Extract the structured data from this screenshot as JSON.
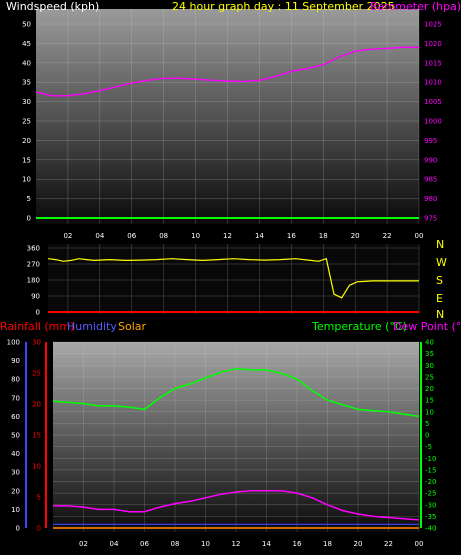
{
  "header": {
    "windspeed_label": "Windspeed (kph)",
    "graph_title": "24 hour graph day : 11 September 2025",
    "barometer_label": "Barometer (hpa)"
  },
  "legend": {
    "rainfall": "Rainfall (mm)",
    "humidity": "Humidity",
    "solar": "Solar",
    "temperature": "Temperature (°C)",
    "dewpoint": "Dew Point (°C)"
  },
  "compass": [
    "N",
    "W",
    "S",
    "E",
    "N"
  ],
  "colors": {
    "windspeed": "#00ff00",
    "barometer": "#ff00ff",
    "direction": "#ffff00",
    "rainfall": "#ff0000",
    "humidity": "#ff00ff",
    "temperature": "#00ff00",
    "dewpoint": "#ff00ff",
    "solar": "#ffa500"
  },
  "chart_data": [
    {
      "type": "line",
      "x_ticks": [
        "02",
        "04",
        "06",
        "08",
        "10",
        "12",
        "14",
        "16",
        "18",
        "20",
        "22",
        "00"
      ],
      "left_axis": {
        "label": "Windspeed (kph)",
        "range": [
          0,
          50
        ],
        "ticks": [
          0,
          5,
          10,
          15,
          20,
          25,
          30,
          35,
          40,
          45,
          50
        ]
      },
      "right_axis": {
        "label": "Barometer (hpa)",
        "range": [
          975,
          1025
        ],
        "ticks": [
          975,
          980,
          985,
          990,
          995,
          1000,
          1005,
          1010,
          1015,
          1020,
          1025
        ]
      },
      "series": [
        {
          "name": "Barometer (hpa)",
          "axis": "right",
          "x": [
            0,
            1,
            2,
            3,
            4,
            5,
            6,
            7,
            8,
            9,
            10,
            11,
            12,
            13,
            14,
            15,
            16,
            17,
            18,
            19,
            20,
            21,
            22,
            23,
            24
          ],
          "values": [
            1007.5,
            1006.5,
            1006.5,
            1007,
            1007.8,
            1008.8,
            1009.8,
            1010.5,
            1011,
            1011,
            1010.8,
            1010.5,
            1010.3,
            1010.2,
            1010.5,
            1011.5,
            1012.8,
            1013.5,
            1014.5,
            1016.5,
            1018,
            1018.5,
            1018.7,
            1019,
            1019
          ]
        },
        {
          "name": "Windspeed (kph)",
          "axis": "left",
          "x": [
            0,
            24
          ],
          "values": [
            0,
            0
          ]
        }
      ]
    },
    {
      "type": "line",
      "y_range": [
        0,
        360
      ],
      "y_ticks": [
        0,
        90,
        180,
        270,
        360
      ],
      "x_ticks": [
        "02",
        "04",
        "06",
        "08",
        "10",
        "12",
        "14",
        "16",
        "18",
        "20",
        "22",
        "00"
      ],
      "series": [
        {
          "name": "Wind direction",
          "x": [
            0,
            0.5,
            1,
            1.5,
            2,
            2.5,
            3,
            4,
            5,
            6,
            7,
            8,
            9,
            10,
            11,
            12,
            13,
            14,
            15,
            16,
            17,
            17.5,
            18,
            18.5,
            19,
            19.5,
            20,
            21,
            22,
            23,
            24
          ],
          "values": [
            300,
            295,
            285,
            290,
            300,
            295,
            290,
            295,
            290,
            292,
            295,
            300,
            295,
            290,
            295,
            300,
            295,
            292,
            295,
            300,
            290,
            285,
            300,
            100,
            80,
            150,
            170,
            175,
            175,
            175,
            175
          ]
        },
        {
          "name": "Rainfall (mm)",
          "x": [
            0,
            24
          ],
          "values": [
            0,
            0
          ]
        }
      ]
    },
    {
      "type": "line",
      "x_ticks": [
        "02",
        "04",
        "06",
        "08",
        "10",
        "12",
        "14",
        "16",
        "18",
        "20",
        "22",
        "00"
      ],
      "humidity_axis": {
        "range": [
          0,
          100
        ],
        "ticks": [
          0,
          10,
          20,
          30,
          40,
          50,
          60,
          70,
          80,
          90,
          100
        ]
      },
      "rainfall_axis": {
        "range": [
          0,
          30
        ],
        "ticks": [
          0,
          5,
          10,
          15,
          20,
          25,
          30
        ]
      },
      "temperature_axis": {
        "range": [
          -40,
          40
        ],
        "ticks": [
          40,
          35,
          30,
          25,
          20,
          15,
          10,
          5,
          0,
          -5,
          -10,
          -15,
          -20,
          -25,
          -30,
          -35,
          -40
        ]
      },
      "series": [
        {
          "name": "Temperature (°C)",
          "axis": "temperature",
          "x": [
            0,
            1,
            2,
            3,
            4,
            5,
            6,
            7,
            8,
            9,
            10,
            11,
            12,
            13,
            14,
            15,
            16,
            17,
            18,
            19,
            20,
            21,
            22,
            23,
            24
          ],
          "values": [
            14.5,
            14,
            13.5,
            12.5,
            12.5,
            12,
            11,
            16,
            20,
            22,
            24.5,
            27,
            28.5,
            28,
            28,
            26.5,
            24,
            19,
            15,
            13,
            11,
            10.5,
            10,
            9,
            8
          ]
        },
        {
          "name": "Dew Point (°C)",
          "axis": "temperature",
          "x": [
            0,
            1,
            2,
            3,
            4,
            5,
            6,
            7,
            8,
            9,
            10,
            11,
            12,
            13,
            14,
            15,
            16,
            17,
            18,
            19,
            20,
            21,
            22,
            23,
            24
          ],
          "values": [
            -30.5,
            -30.5,
            -31,
            -32,
            -32,
            -33,
            -33,
            -31,
            -29.5,
            -28.5,
            -27,
            -25.5,
            -24.5,
            -24,
            -24,
            -24,
            -25,
            -27,
            -30,
            -32.5,
            -34,
            -35,
            -35.5,
            -36,
            -36.5
          ]
        },
        {
          "name": "Humidity",
          "axis": "humidity",
          "x": [
            0,
            24
          ],
          "values": [
            2,
            2
          ]
        },
        {
          "name": "Rainfall (mm)",
          "axis": "rainfall",
          "x": [
            0,
            24
          ],
          "values": [
            0,
            0
          ]
        },
        {
          "name": "Solar",
          "axis": "humidity",
          "x": [
            0,
            24
          ],
          "values": [
            0,
            0
          ]
        }
      ]
    }
  ]
}
